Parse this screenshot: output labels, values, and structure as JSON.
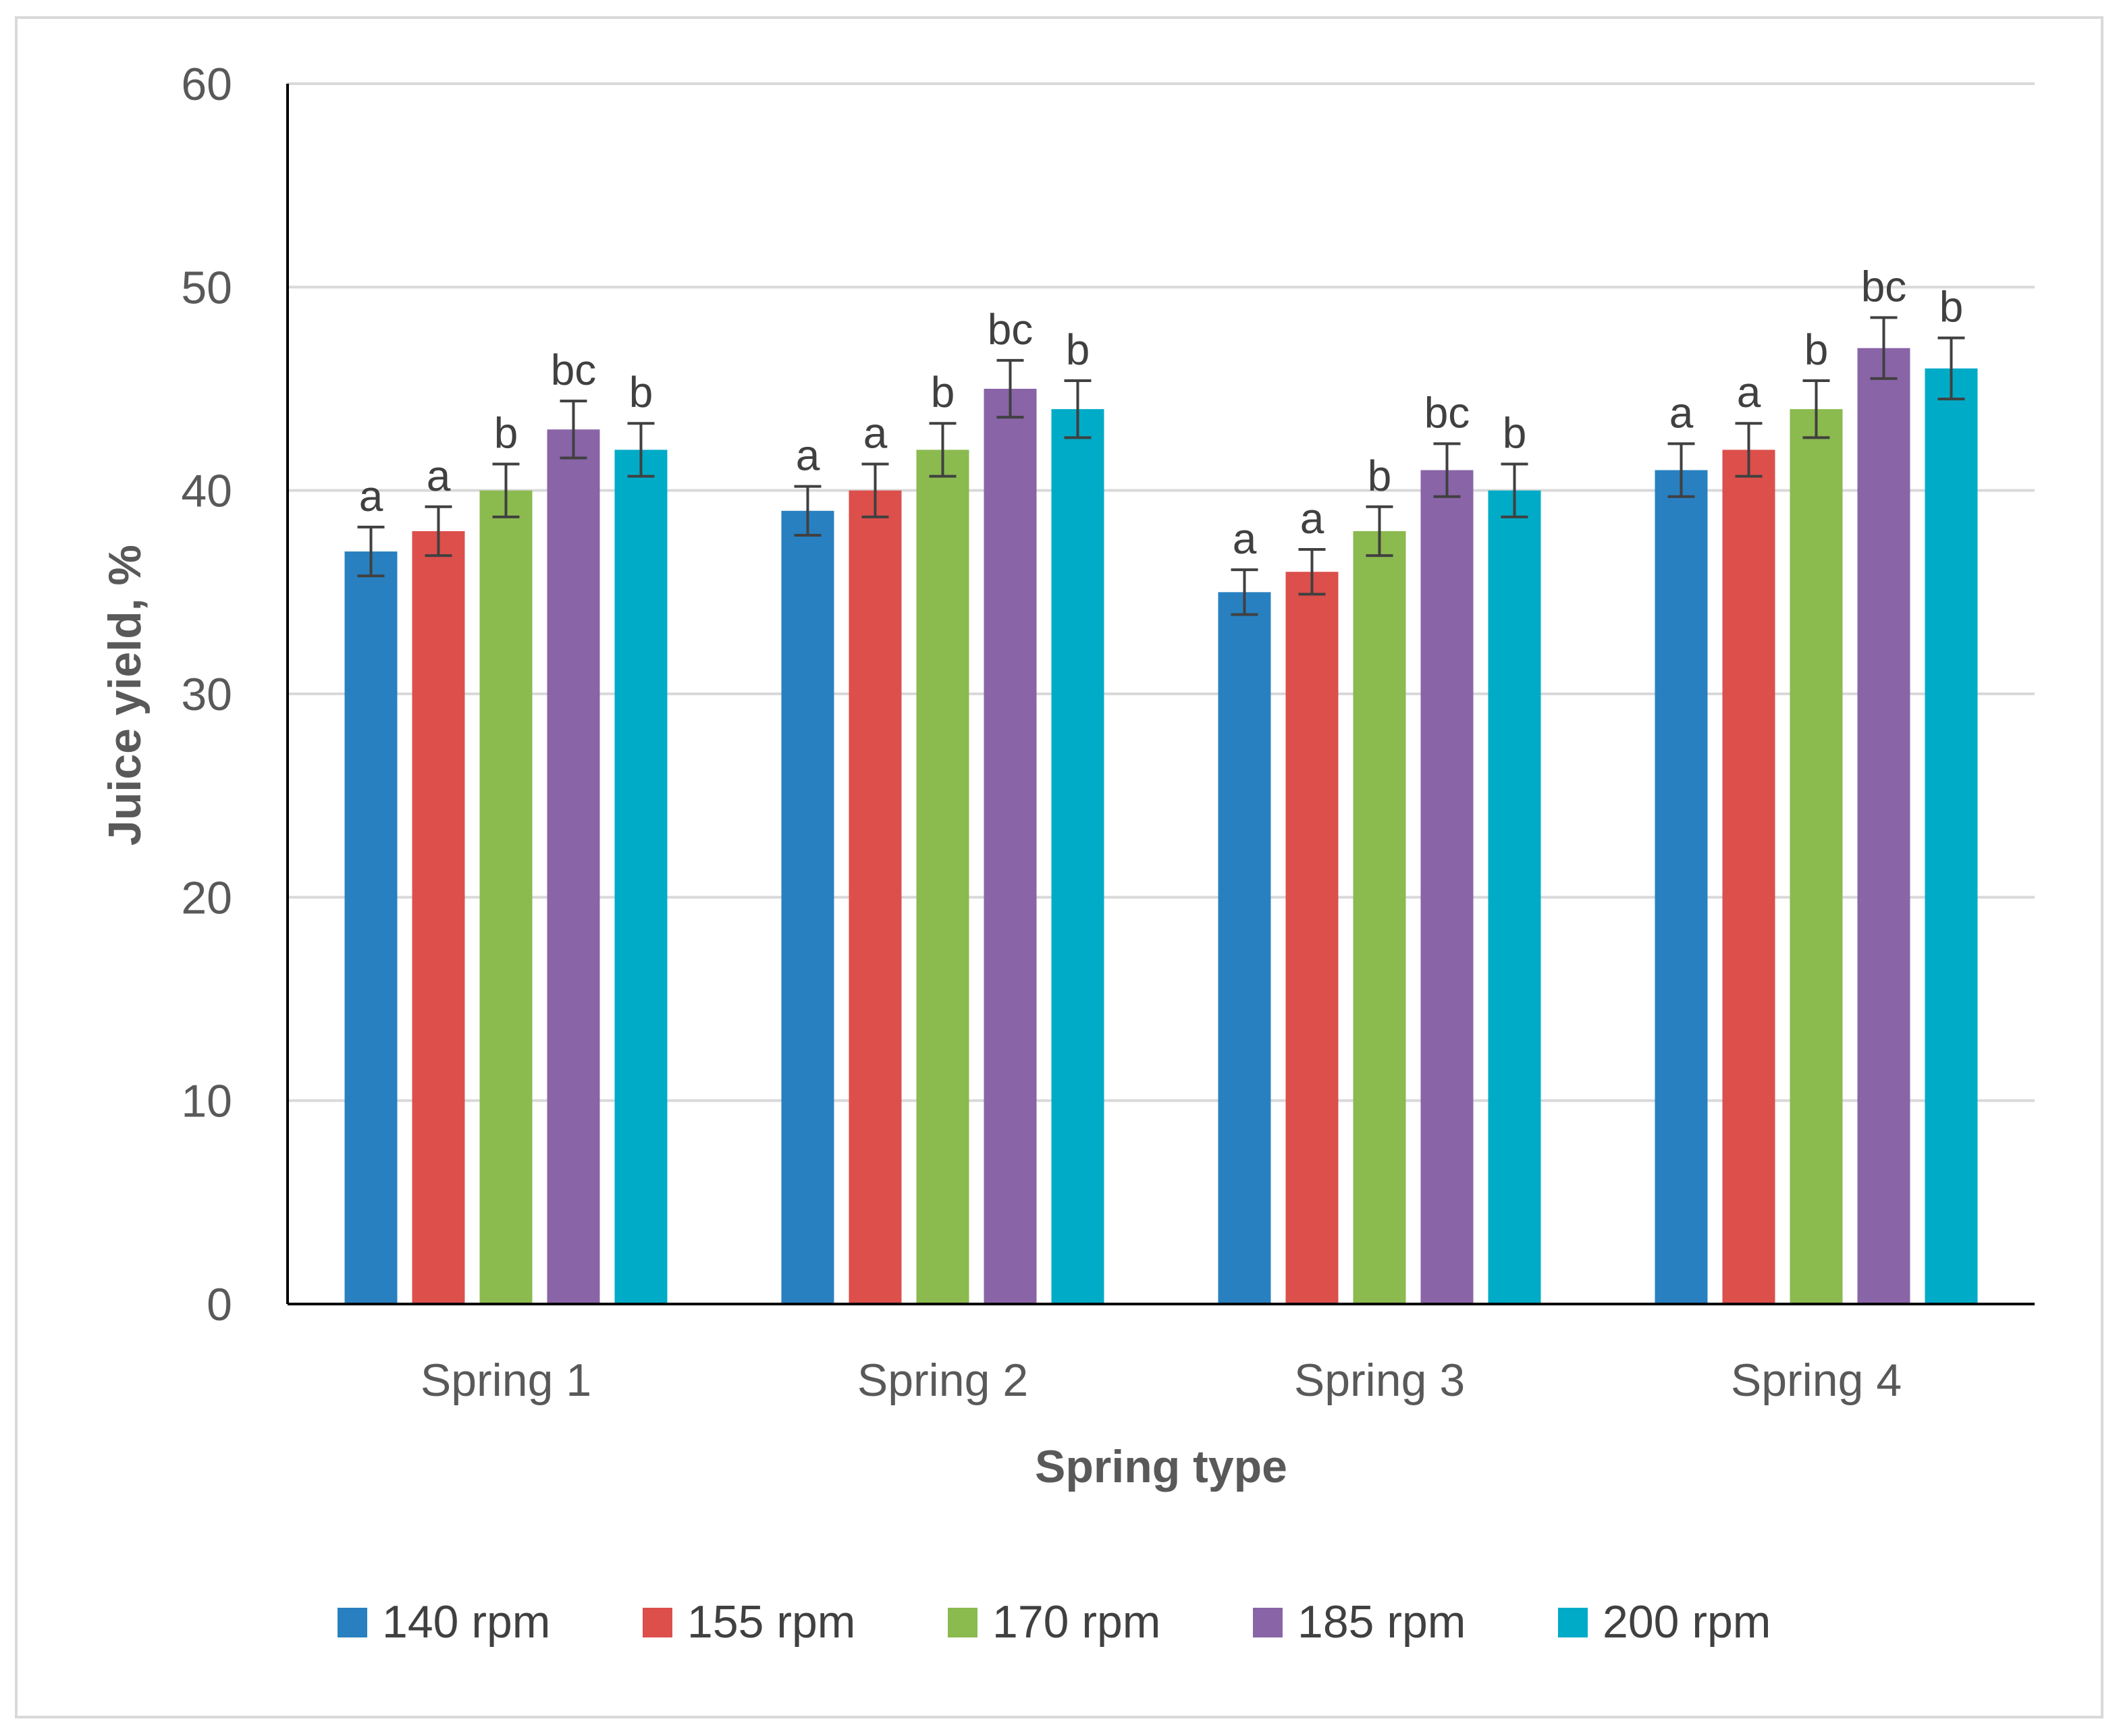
{
  "chart_data": {
    "type": "bar",
    "title": "",
    "xlabel": "Spring type",
    "ylabel": "Juice yield, %",
    "ylim": [
      0,
      60
    ],
    "yticks": [
      0,
      10,
      20,
      30,
      40,
      50,
      60
    ],
    "grid": true,
    "legend_position": "bottom",
    "categories": [
      "Spring 1",
      "Spring 2",
      "Spring 3",
      "Spring 4"
    ],
    "series": [
      {
        "name": "140 rpm",
        "color": "#2880C0",
        "values": [
          37,
          39,
          35,
          41
        ],
        "errors": [
          1.2,
          1.2,
          1.1,
          1.3
        ],
        "labels": [
          "a",
          "a",
          "a",
          "a"
        ]
      },
      {
        "name": "155 rpm",
        "color": "#DC4F4B",
        "values": [
          38,
          40,
          36,
          42
        ],
        "errors": [
          1.2,
          1.3,
          1.1,
          1.3
        ],
        "labels": [
          "a",
          "a",
          "a",
          "a"
        ]
      },
      {
        "name": "170 rpm",
        "color": "#8BBA4F",
        "values": [
          40,
          42,
          38,
          44
        ],
        "errors": [
          1.3,
          1.3,
          1.2,
          1.4
        ],
        "labels": [
          "b",
          "b",
          "b",
          "b"
        ]
      },
      {
        "name": "185 rpm",
        "color": "#8964A7",
        "values": [
          43,
          45,
          41,
          47
        ],
        "errors": [
          1.4,
          1.4,
          1.3,
          1.5
        ],
        "labels": [
          "bc",
          "bc",
          "bc",
          "bc"
        ]
      },
      {
        "name": "200 rpm",
        "color": "#00ABC7",
        "values": [
          42,
          44,
          40,
          46
        ],
        "errors": [
          1.3,
          1.4,
          1.3,
          1.5
        ],
        "labels": [
          "b",
          "b",
          "b",
          "b"
        ]
      }
    ]
  }
}
